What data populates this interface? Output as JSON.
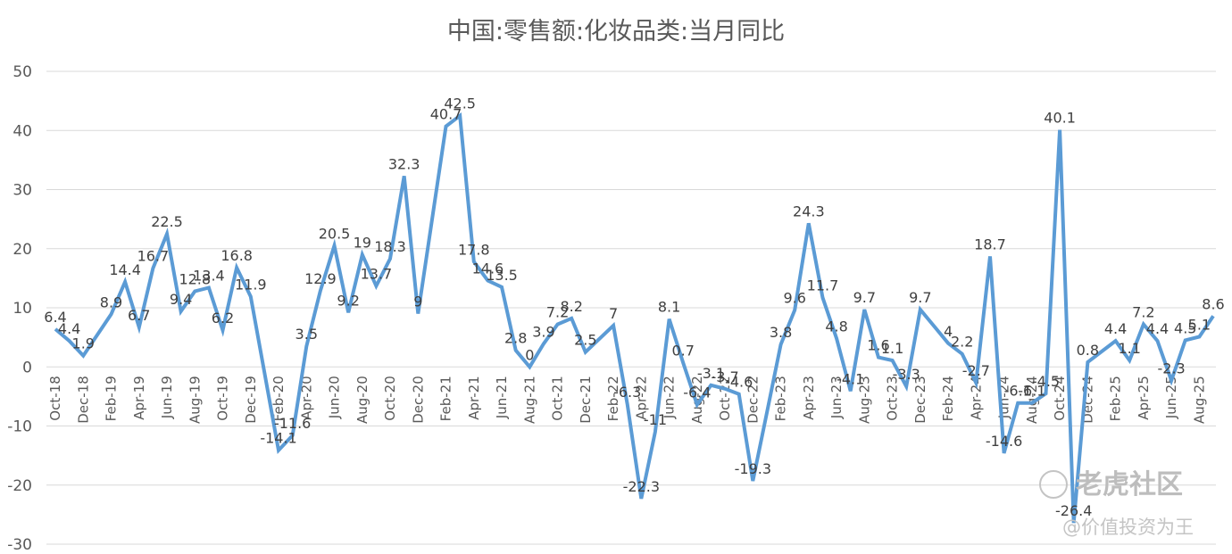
{
  "chart_data": {
    "type": "line",
    "title": "中国:零售额:化妆品类:当月同比",
    "ylim": [
      -30,
      50
    ],
    "yticks": [
      "50",
      "40",
      "30",
      "20",
      "10",
      "0",
      "-10",
      "-20",
      "-30"
    ],
    "ytick_values": [
      50,
      40,
      30,
      20,
      10,
      0,
      -10,
      -20,
      -30
    ],
    "grid": true,
    "legend": "none",
    "line_color": "#5B9BD5",
    "categories": [
      "Oct-18",
      "Nov-18",
      "Dec-18",
      "Jan-19",
      "Feb-19",
      "Mar-19",
      "Apr-19",
      "May-19",
      "Jun-19",
      "Jul-19",
      "Aug-19",
      "Sep-19",
      "Oct-19",
      "Nov-19",
      "Dec-19",
      "Jan-20",
      "Feb-20",
      "Mar-20",
      "Apr-20",
      "May-20",
      "Jun-20",
      "Jul-20",
      "Aug-20",
      "Sep-20",
      "Oct-20",
      "Nov-20",
      "Dec-20",
      "Jan-21",
      "Feb-21",
      "Mar-21",
      "Apr-21",
      "May-21",
      "Jun-21",
      "Jul-21",
      "Aug-21",
      "Sep-21",
      "Oct-21",
      "Nov-21",
      "Dec-21",
      "Jan-22",
      "Feb-22",
      "Mar-22",
      "Apr-22",
      "May-22",
      "Jun-22",
      "Jul-22",
      "Aug-22",
      "Sep-22",
      "Oct-22",
      "Nov-22",
      "Dec-22",
      "Jan-23",
      "Feb-23",
      "Mar-23",
      "Apr-23",
      "May-23",
      "Jun-23",
      "Jul-23",
      "Aug-23",
      "Sep-23",
      "Oct-23",
      "Nov-23",
      "Dec-23",
      "Jan-24",
      "Feb-24",
      "Mar-24",
      "Apr-24",
      "May-24",
      "Jun-24",
      "Jul-24",
      "Aug-24",
      "Sep-24",
      "Oct-24",
      "Nov-24",
      "Dec-24",
      "Jan-25",
      "Feb-25",
      "Mar-25",
      "Apr-25",
      "May-25",
      "Jun-25",
      "Jul-25",
      "Aug-25",
      "Sep-25"
    ],
    "x_tick_labels": [
      "Oct-18",
      "Dec-18",
      "Feb-19",
      "Apr-19",
      "Jun-19",
      "Aug-19",
      "Oct-19",
      "Dec-19",
      "Feb-20",
      "Apr-20",
      "Jun-20",
      "Aug-20",
      "Oct-20",
      "Dec-20",
      "Feb-21",
      "Apr-21",
      "Jun-21",
      "Aug-21",
      "Oct-21",
      "Dec-21",
      "Feb-22",
      "Apr-22",
      "Jun-22",
      "Aug-22",
      "Oct-22",
      "Dec-22",
      "Feb-23",
      "Apr-23",
      "Jun-23",
      "Aug-23",
      "Oct-23",
      "Dec-23",
      "Feb-24",
      "Apr-24",
      "Jun-24",
      "Aug-24",
      "Oct-24",
      "Dec-24",
      "Feb-25",
      "Apr-25",
      "Jun-25",
      "Aug-25"
    ],
    "series": [
      {
        "values": [
          6.4,
          4.4,
          1.9,
          null,
          8.9,
          14.4,
          6.7,
          16.7,
          22.5,
          9.4,
          12.8,
          13.4,
          6.2,
          16.8,
          11.9,
          null,
          -14.1,
          -11.6,
          3.5,
          12.9,
          20.5,
          9.2,
          19,
          13.7,
          18.3,
          32.3,
          9,
          null,
          40.7,
          42.5,
          17.8,
          14.6,
          13.5,
          2.8,
          0,
          3.9,
          7.2,
          8.2,
          2.5,
          null,
          7,
          -6.3,
          -22.3,
          -11,
          8.1,
          0.7,
          -6.4,
          -3.1,
          -3.7,
          -4.6,
          -19.3,
          null,
          3.8,
          9.6,
          24.3,
          11.7,
          4.8,
          -4.1,
          9.7,
          1.6,
          1.1,
          -3.3,
          9.7,
          null,
          4,
          2.2,
          -2.7,
          18.7,
          -14.6,
          -6.1,
          -6.1,
          -4.5,
          40.1,
          -26.4,
          0.8,
          null,
          4.4,
          1.1,
          7.2,
          4.4,
          -2.3,
          4.5,
          5.1,
          8.6
        ],
        "labels": [
          "6.4",
          "4.4",
          "1.9",
          "",
          "8.9",
          "14.4",
          "6.7",
          "16.7",
          "22.5",
          "9.4",
          "12.8",
          "13.4",
          "6.2",
          "16.8",
          "11.9",
          "",
          "-14.1",
          "-11.6",
          "3.5",
          "12.9",
          "20.5",
          "9.2",
          "19",
          "13.7",
          "18.3",
          "32.3",
          "9",
          "",
          "40.7",
          "42.5",
          "17.8",
          "14.6",
          "13.5",
          "2.8",
          "0",
          "3.9",
          "7.2",
          "8.2",
          "2.5",
          "",
          "7",
          "-6.3",
          "-22.3",
          "-11",
          "8.1",
          "0.7",
          "-6.4",
          "-3.1",
          "-3.7",
          "-4.6",
          "-19.3",
          "",
          "3.8",
          "9.6",
          "24.3",
          "11.7",
          "4.8",
          "-4.1",
          "9.7",
          "1.6",
          "1.1",
          "-3.3",
          "9.7",
          "",
          "4",
          "2.2",
          "-2.7",
          "18.7",
          "-14.6",
          "-6.1",
          "-6.1",
          "-4.5",
          "40.1",
          "-26.4",
          "0.8",
          "",
          "4.4",
          "1.1",
          "7.2",
          "4.4",
          "-2.3",
          "4.5",
          "5.1",
          "8.6"
        ]
      }
    ]
  },
  "watermark": {
    "brand": "老虎社区",
    "sub": "@价值投资为王"
  }
}
